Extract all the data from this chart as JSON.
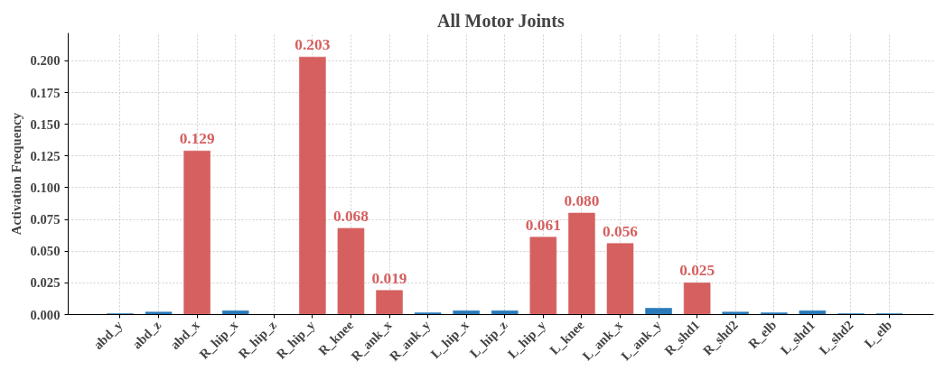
{
  "chart_data": {
    "type": "bar",
    "title": "All Motor Joints",
    "ylabel": "Activation Frequency",
    "categories": [
      "abd_y",
      "abd_z",
      "abd_x",
      "R_hip_x",
      "R_hip_z",
      "R_hip_y",
      "R_knee",
      "R_ank_x",
      "R_ank_y",
      "L_hip_x",
      "L_hip_z",
      "L_hip_y",
      "L_knee",
      "L_ank_x",
      "L_ank_y",
      "R_shd1",
      "R_shd2",
      "R_elb",
      "L_shd1",
      "L_shd2",
      "L_elb"
    ],
    "values": [
      0.0007,
      0.002,
      0.129,
      0.003,
      0,
      0.203,
      0.068,
      0.019,
      0.0015,
      0.003,
      0.003,
      0.061,
      0.08,
      0.056,
      0.005,
      0.025,
      0.002,
      0.0015,
      0.003,
      0.0007,
      0.0007
    ],
    "colors": [
      "#2a7ab9",
      "#2a7ab9",
      "#d66060",
      "#2a7ab9",
      "#2a7ab9",
      "#d66060",
      "#d66060",
      "#d66060",
      "#2a7ab9",
      "#2a7ab9",
      "#2a7ab9",
      "#d66060",
      "#d66060",
      "#d66060",
      "#2a7ab9",
      "#d66060",
      "#2a7ab9",
      "#2a7ab9",
      "#2a7ab9",
      "#2a7ab9",
      "#2a7ab9"
    ],
    "value_labels": [
      null,
      null,
      "0.129",
      null,
      null,
      "0.203",
      "0.068",
      "0.019",
      null,
      null,
      null,
      "0.061",
      "0.080",
      "0.056",
      null,
      "0.025",
      null,
      null,
      null,
      null,
      null
    ],
    "ylim": [
      0,
      0.222
    ],
    "yticks": [
      {
        "value": 0,
        "label": "0.000"
      },
      {
        "value": 0.025,
        "label": "0.025"
      },
      {
        "value": 0.05,
        "label": "0.050"
      },
      {
        "value": 0.075,
        "label": "0.075"
      },
      {
        "value": 0.1,
        "label": "0.100"
      },
      {
        "value": 0.125,
        "label": "0.125"
      },
      {
        "value": 0.15,
        "label": "0.150"
      },
      {
        "value": 0.175,
        "label": "0.175"
      },
      {
        "value": 0.2,
        "label": "0.200"
      }
    ],
    "grid": true
  }
}
